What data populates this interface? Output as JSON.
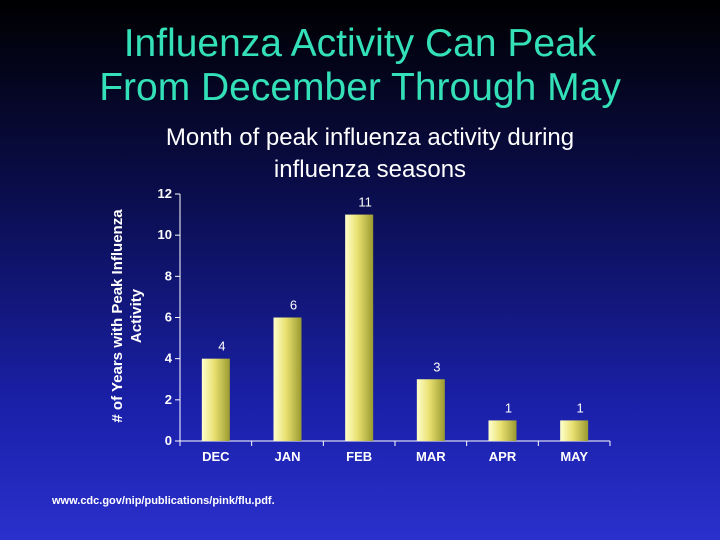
{
  "slide": {
    "title_line1": "Influenza Activity Can Peak",
    "title_line2": "From December Through May",
    "source": "www.cdc.gov/nip/publications/pink/flu.pdf."
  },
  "chart_data": {
    "type": "bar",
    "title_line1": "Month of peak influenza activity during",
    "title_line2": "influenza seasons",
    "ylabel_line1": "# of Years with Peak Influenza",
    "ylabel_line2": "Activity",
    "xlabel": "",
    "categories": [
      "DEC",
      "JAN",
      "FEB",
      "MAR",
      "APR",
      "MAY"
    ],
    "values": [
      4,
      6,
      11,
      3,
      1,
      1
    ],
    "data_labels": [
      "4",
      "6",
      "11",
      "3",
      "1",
      "1"
    ],
    "ylim": [
      0,
      12
    ],
    "yticks": [
      0,
      2,
      4,
      6,
      8,
      10,
      12
    ],
    "grid": false,
    "legend": "none",
    "colors": {
      "bar_light": "#ffffcc",
      "bar_mid": "#e8e070",
      "bar_dark": "#9a9a30",
      "text": "#ffffff"
    }
  }
}
